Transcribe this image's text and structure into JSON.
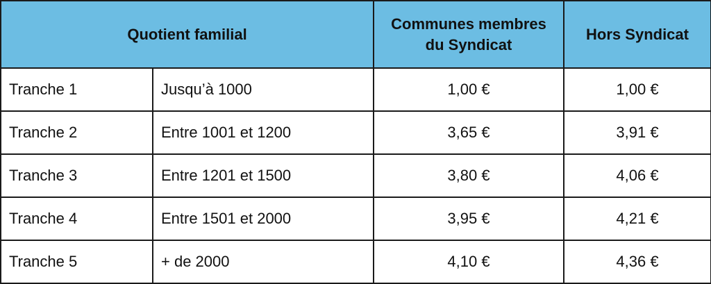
{
  "header": {
    "quotient": "Quotient familial",
    "membres_line1": "Communes membres",
    "membres_line2": "du Syndicat",
    "hors": "Hors Syndicat"
  },
  "rows": [
    {
      "tranche": "Tranche 1",
      "range": "Jusqu’à 1000",
      "membres": "1,00 €",
      "hors": "1,00 €"
    },
    {
      "tranche": "Tranche 2",
      "range": "Entre 1001 et 1200",
      "membres": "3,65 €",
      "hors": "3,91 €"
    },
    {
      "tranche": "Tranche 3",
      "range": "Entre 1201 et 1500",
      "membres": "3,80 €",
      "hors": "4,06 €"
    },
    {
      "tranche": "Tranche 4",
      "range": "Entre 1501 et 2000",
      "membres": "3,95 €",
      "hors": "4,21 €"
    },
    {
      "tranche": "Tranche 5",
      "range": "+ de 2000",
      "membres": "4,10 €",
      "hors": "4,36 €"
    }
  ],
  "colors": {
    "header_bg": "#6cbde3",
    "border": "#1a1a1a"
  }
}
